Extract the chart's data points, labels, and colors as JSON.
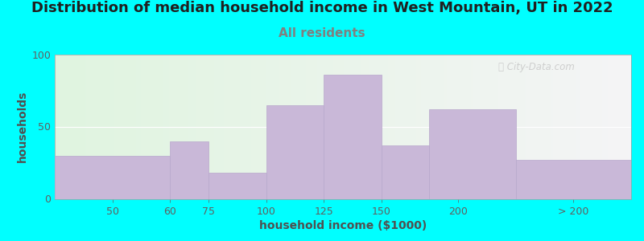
{
  "title": "Distribution of median household income in West Mountain, UT in 2022",
  "subtitle": "All residents",
  "xlabel": "household income ($1000)",
  "ylabel": "households",
  "background_outer": "#00FFFF",
  "bar_color": "#c9b8d8",
  "bar_edge_color": "#b8a8cc",
  "ylim": [
    0,
    100
  ],
  "yticks": [
    0,
    50,
    100
  ],
  "title_fontsize": 13,
  "subtitle_fontsize": 11,
  "axis_label_fontsize": 10,
  "watermark_text": "Ⓢ City-Data.com",
  "bar_heights": [
    30,
    40,
    18,
    65,
    86,
    37,
    62,
    27
  ],
  "xtick_labels": [
    "50",
    "60",
    "75",
    "100",
    "125",
    "150",
    "200",
    "> 200"
  ],
  "subtitle_color": "#808080",
  "title_color": "#202020",
  "tick_color": "#606060",
  "xlabel_color": "#505050",
  "ylabel_color": "#505050"
}
